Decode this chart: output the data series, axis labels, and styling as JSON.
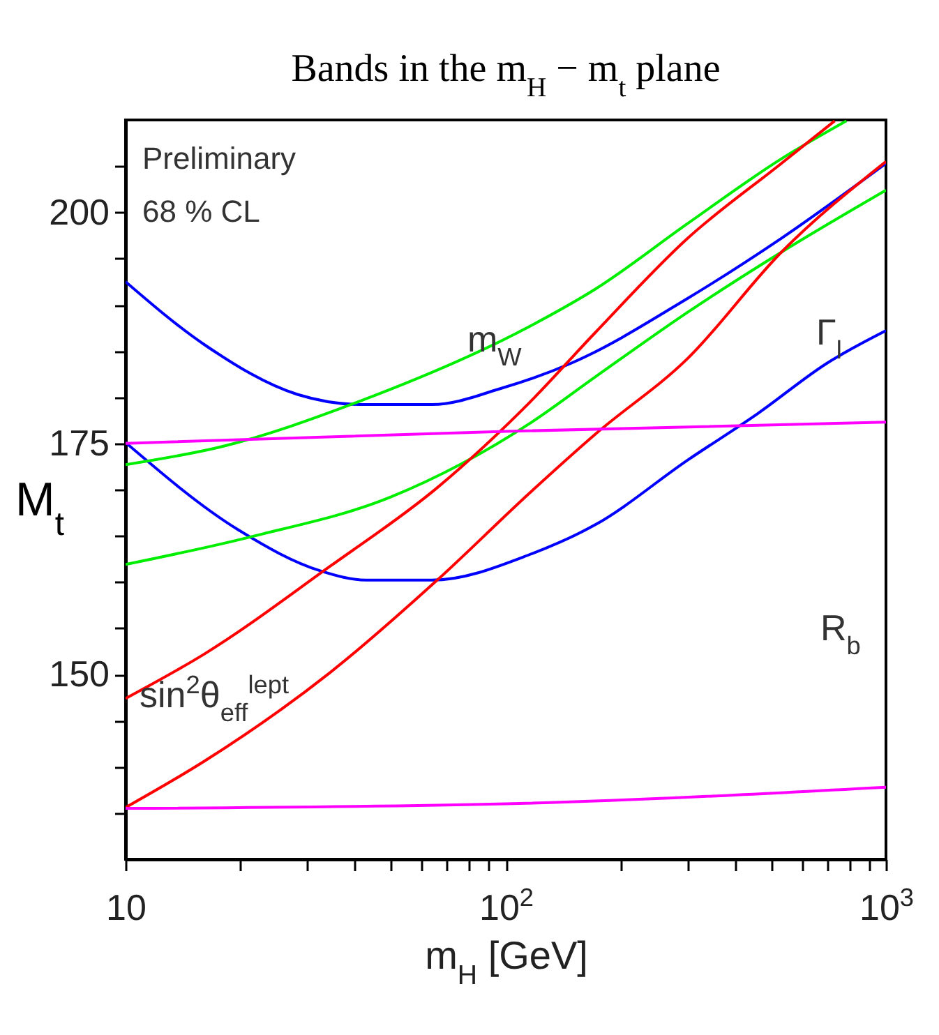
{
  "chart_data": {
    "type": "line",
    "title": "Bands in the m$_{H}$ − m$_{t}$ plane",
    "xlabel": "m$_{H}$  [GeV]",
    "ylabel": "M$_{t}$",
    "log": "x",
    "xlim": [
      10,
      1000
    ],
    "ylim": [
      130,
      210
    ],
    "xticks": [
      10,
      {
        "value": 20,
        "label": null
      },
      {
        "value": 30,
        "label": null
      },
      {
        "value": 40,
        "label": null
      },
      {
        "value": 50,
        "label": null
      },
      {
        "value": 60,
        "label": null
      },
      {
        "value": 70,
        "label": null
      },
      {
        "value": 80,
        "label": null
      },
      {
        "value": 90,
        "label": null
      },
      {
        "value": 100,
        "label": "10$^{2}$"
      },
      {
        "value": 200,
        "label": null
      },
      {
        "value": 300,
        "label": null
      },
      {
        "value": 400,
        "label": null
      },
      {
        "value": 500,
        "label": null
      },
      {
        "value": 600,
        "label": null
      },
      {
        "value": 700,
        "label": null
      },
      {
        "value": 800,
        "label": null
      },
      {
        "value": 900,
        "label": null
      },
      {
        "value": 1000,
        "label": "10$^{3}$"
      }
    ],
    "yticks": [
      {
        "value": 135,
        "label": null
      },
      {
        "value": 140,
        "label": null
      },
      {
        "value": 145,
        "label": null
      },
      150,
      {
        "value": 155,
        "label": null
      },
      {
        "value": 160,
        "label": null
      },
      {
        "value": 165,
        "label": null
      },
      {
        "value": 170,
        "label": null
      },
      175,
      {
        "value": 180,
        "label": null
      },
      {
        "value": 185,
        "label": null
      },
      {
        "value": 190,
        "label": null
      },
      {
        "value": 195,
        "label": null
      },
      200,
      {
        "value": 205,
        "label": null
      }
    ],
    "series": [
      {
        "color": "#0000ff",
        "x": [
          10,
          16.1,
          28.3,
          42,
          52,
          64,
          98,
          149,
          301,
          531,
          1000
        ],
        "values": [
          192.5,
          185.7,
          180.3,
          179.2,
          179.2,
          179.2,
          181.0,
          183.7,
          190.7,
          197.2,
          205.3
        ]
      },
      {
        "color": "#0000ff",
        "x": [
          10,
          19.7,
          32.6,
          43,
          52,
          64,
          116,
          172,
          301,
          459,
          701,
          1000
        ],
        "values": [
          175.1,
          165.7,
          161.2,
          160.2,
          160.2,
          160.2,
          163.0,
          166.2,
          173.2,
          178.2,
          183.7,
          187.2
        ]
      },
      {
        "color": "#00ee00",
        "x": [
          10,
          18.1,
          40.9,
          116,
          172,
          301,
          531,
          787
        ],
        "values": [
          172.7,
          174.7,
          179.5,
          187.7,
          191.7,
          198.8,
          205.8,
          209.9
        ]
      },
      {
        "color": "#00ee00",
        "x": [
          10,
          21.4,
          49.8,
          116,
          172,
          301,
          531,
          1000
        ],
        "values": [
          161.9,
          164.9,
          169.2,
          177.2,
          182.2,
          189.2,
          195.7,
          202.4
        ]
      },
      {
        "color": "#ff0000",
        "x": [
          10,
          16.1,
          34.5,
          66,
          116,
          172,
          301,
          531,
          733
        ],
        "values": [
          147.4,
          152.2,
          161.7,
          170.2,
          179.5,
          187.0,
          197.2,
          205.3,
          209.9
        ]
      },
      {
        "color": "#ff0000",
        "x": [
          10,
          16.1,
          34.5,
          66,
          116,
          172,
          301,
          531,
          1000
        ],
        "values": [
          135.6,
          140.6,
          150.2,
          160.2,
          169.7,
          176.0,
          184.2,
          195.7,
          205.5
        ]
      },
      {
        "color": "#ff00ff",
        "x": [
          10,
          100,
          1000
        ],
        "values": [
          175.0,
          176.3,
          177.3
        ]
      },
      {
        "color": "#ff00ff",
        "x": [
          10,
          100,
          1000
        ],
        "values": [
          135.5,
          136.0,
          137.8
        ]
      }
    ],
    "annotations": [
      "Preliminary",
      "68 % CL",
      "m$_{W}$",
      "Γ$_{l}$",
      "R$_{b}$",
      "sin$^{2}$θ$_{eff}$$^{lept}$"
    ]
  }
}
